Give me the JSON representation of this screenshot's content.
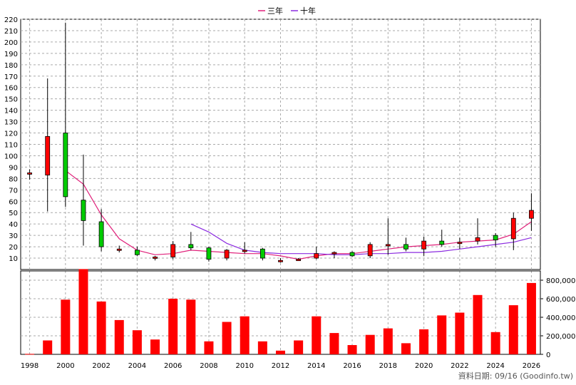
{
  "chart_data": {
    "type": "candlestick",
    "legend": {
      "placement": "top-center",
      "items": [
        {
          "label": "三年",
          "color": "#e0207a"
        },
        {
          "label": "十年",
          "color": "#8b2be0"
        }
      ]
    },
    "source_note": "資料日期: 09/16 (Goodinfo.tw)",
    "colors": {
      "up": "#ff0000",
      "down": "#00cc00",
      "volume": "#ff0000",
      "grid": "#aaaaaa",
      "wick": "#000000"
    },
    "price_axis": {
      "ylim": [
        0,
        220
      ],
      "ticks": [
        10,
        20,
        30,
        40,
        50,
        60,
        70,
        80,
        90,
        100,
        110,
        120,
        130,
        140,
        150,
        160,
        170,
        180,
        190,
        200,
        210,
        220
      ],
      "position": "left"
    },
    "volume_axis": {
      "ylim": [
        0,
        900000
      ],
      "ticks": [
        0,
        200000,
        400000,
        600000,
        800000
      ],
      "tick_labels": [
        "0",
        "200,000",
        "400,000",
        "600,000",
        "800,000"
      ],
      "position": "right"
    },
    "x_axis": {
      "xlim": [
        1997.5,
        2026.5
      ],
      "tick_labels": [
        "1998",
        "2000",
        "2002",
        "2004",
        "2006",
        "2008",
        "2010",
        "2012",
        "2014",
        "2016",
        "2018",
        "2020",
        "2022",
        "2024",
        "2026"
      ]
    },
    "grid": true,
    "candles": [
      {
        "x": 1998,
        "open": 84,
        "close": 85,
        "high": 88,
        "low": 79
      },
      {
        "x": 1999,
        "open": 83,
        "close": 117,
        "high": 168,
        "low": 51
      },
      {
        "x": 2000,
        "open": 120,
        "close": 64,
        "high": 217,
        "low": 55
      },
      {
        "x": 2001,
        "open": 61,
        "close": 43,
        "high": 101,
        "low": 21
      },
      {
        "x": 2002,
        "open": 42,
        "close": 20,
        "high": 53,
        "low": 16
      },
      {
        "x": 2003,
        "open": 18,
        "close": 18,
        "high": 21,
        "low": 15
      },
      {
        "x": 2004,
        "open": 17,
        "close": 13,
        "high": 20,
        "low": 12
      },
      {
        "x": 2005,
        "open": 11,
        "close": 11,
        "high": 12,
        "low": 8
      },
      {
        "x": 2006,
        "open": 11,
        "close": 22,
        "high": 25,
        "low": 9
      },
      {
        "x": 2007,
        "open": 22,
        "close": 19,
        "high": 33,
        "low": 17
      },
      {
        "x": 2008,
        "open": 19,
        "close": 9,
        "high": 20,
        "low": 7
      },
      {
        "x": 2009,
        "open": 10,
        "close": 17,
        "high": 18,
        "low": 8
      },
      {
        "x": 2010,
        "open": 17,
        "close": 17,
        "high": 24,
        "low": 14
      },
      {
        "x": 2011,
        "open": 18,
        "close": 10,
        "high": 19,
        "low": 8
      },
      {
        "x": 2012,
        "open": 8,
        "close": 8,
        "high": 10,
        "low": 6
      },
      {
        "x": 2013,
        "open": 9,
        "close": 9,
        "high": 10,
        "low": 8
      },
      {
        "x": 2014,
        "open": 10,
        "close": 14,
        "high": 20,
        "low": 9
      },
      {
        "x": 2015,
        "open": 15,
        "close": 15,
        "high": 16,
        "low": 10
      },
      {
        "x": 2016,
        "open": 15,
        "close": 12,
        "high": 16,
        "low": 11
      },
      {
        "x": 2017,
        "open": 12,
        "close": 22,
        "high": 24,
        "low": 10
      },
      {
        "x": 2018,
        "open": 22,
        "close": 22,
        "high": 45,
        "low": 13
      },
      {
        "x": 2019,
        "open": 22,
        "close": 18,
        "high": 28,
        "low": 16
      },
      {
        "x": 2020,
        "open": 18,
        "close": 25,
        "high": 29,
        "low": 12
      },
      {
        "x": 2021,
        "open": 25,
        "close": 22,
        "high": 35,
        "low": 20
      },
      {
        "x": 2022,
        "open": 24,
        "close": 24,
        "high": 28,
        "low": 18
      },
      {
        "x": 2023,
        "open": 25,
        "close": 28,
        "high": 45,
        "low": 22
      },
      {
        "x": 2024,
        "open": 30,
        "close": 26,
        "high": 32,
        "low": 20
      },
      {
        "x": 2025,
        "open": 27,
        "close": 45,
        "high": 50,
        "low": 17
      },
      {
        "x": 2026,
        "open": 45,
        "close": 52,
        "high": 67,
        "low": 34
      }
    ],
    "series": [
      {
        "name": "三年",
        "x": [
          2000,
          2001,
          2002,
          2003,
          2004,
          2005,
          2006,
          2007,
          2008,
          2009,
          2010,
          2011,
          2012,
          2013,
          2014,
          2015,
          2016,
          2017,
          2018,
          2019,
          2020,
          2021,
          2022,
          2023,
          2024,
          2025,
          2026
        ],
        "values": [
          87,
          75,
          48,
          27,
          17,
          13,
          14,
          17,
          16,
          15,
          14,
          14,
          12,
          9,
          12,
          14,
          14,
          16,
          18,
          20,
          21,
          22,
          24,
          25,
          26,
          31,
          42
        ]
      },
      {
        "name": "十年",
        "x": [
          2007,
          2008,
          2009,
          2010,
          2011,
          2012,
          2013,
          2014,
          2015,
          2016,
          2017,
          2018,
          2019,
          2020,
          2021,
          2022,
          2023,
          2024,
          2025,
          2026
        ],
        "values": [
          40,
          33,
          23,
          17,
          15,
          14,
          14,
          14,
          13,
          13,
          14,
          14,
          15,
          15,
          16,
          18,
          20,
          22,
          24,
          28
        ]
      }
    ],
    "volume": {
      "x": [
        1998,
        1999,
        2000,
        2001,
        2002,
        2003,
        2004,
        2005,
        2006,
        2007,
        2008,
        2009,
        2010,
        2011,
        2012,
        2013,
        2014,
        2015,
        2016,
        2017,
        2018,
        2019,
        2020,
        2021,
        2022,
        2023,
        2024,
        2025,
        2026
      ],
      "values": [
        5000,
        150000,
        590000,
        920000,
        570000,
        370000,
        260000,
        160000,
        600000,
        590000,
        140000,
        350000,
        410000,
        140000,
        40000,
        150000,
        410000,
        230000,
        100000,
        210000,
        280000,
        120000,
        270000,
        420000,
        450000,
        640000,
        240000,
        530000,
        770000
      ]
    }
  }
}
